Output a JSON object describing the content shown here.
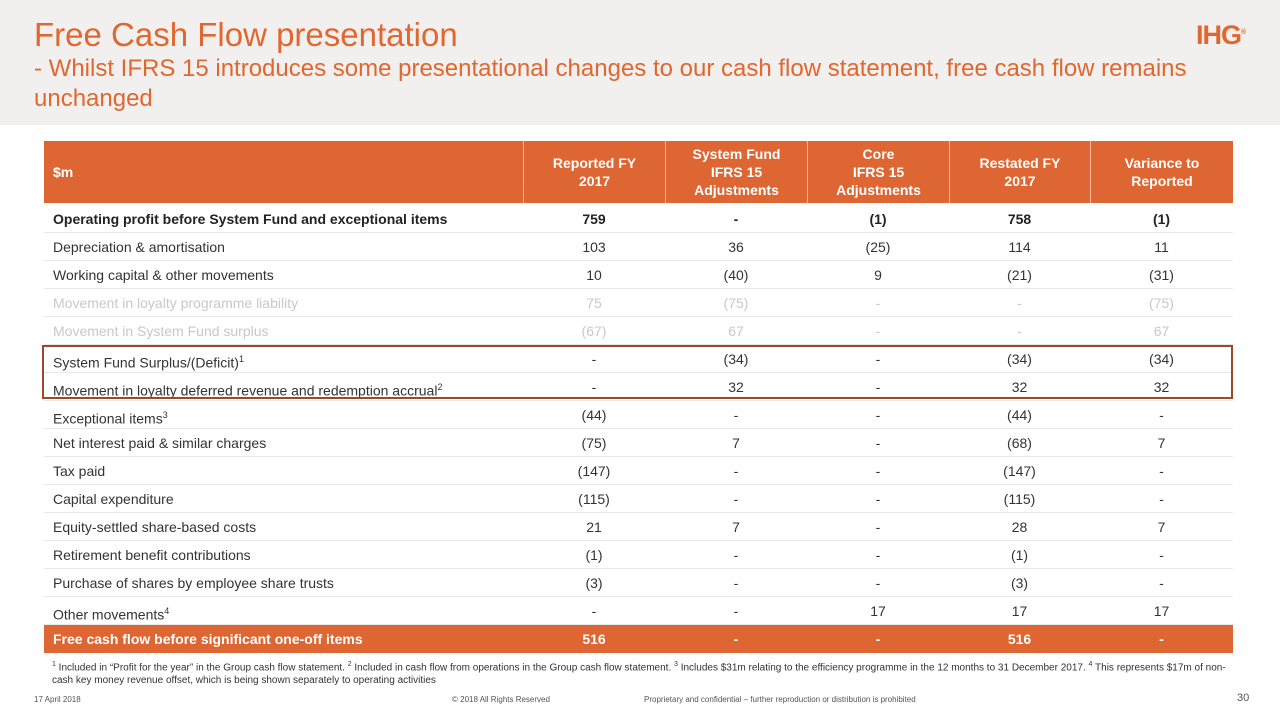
{
  "header": {
    "title": "Free Cash Flow presentation",
    "subtitle": "- Whilst IFRS 15 introduces some presentational changes to our cash flow statement, free cash flow remains unchanged",
    "logo": "IHG",
    "logo_mark": "®"
  },
  "table": {
    "columns": [
      [
        "$m"
      ],
      [
        "Reported FY",
        "2017"
      ],
      [
        "System Fund",
        "IFRS 15",
        "Adjustments"
      ],
      [
        "Core",
        "IFRS 15",
        "Adjustments"
      ],
      [
        "Restated FY",
        "2017"
      ],
      [
        "Variance to",
        "Reported"
      ]
    ],
    "rows": [
      {
        "label": "Operating profit before System Fund and exceptional items",
        "values": [
          "759",
          "-",
          "(1)",
          "758",
          "(1)"
        ]
      },
      {
        "label": "Depreciation & amortisation",
        "values": [
          "103",
          "36",
          "(25)",
          "114",
          "11"
        ]
      },
      {
        "label": "Working capital & other movements",
        "values": [
          "10",
          "(40)",
          "9",
          "(21)",
          "(31)"
        ]
      },
      {
        "label": "Movement in loyalty programme liability",
        "values": [
          "75",
          "(75)",
          "-",
          "-",
          "(75)"
        ]
      },
      {
        "label": "Movement in System Fund surplus",
        "values": [
          "(67)",
          "67",
          "-",
          "-",
          "67"
        ]
      },
      {
        "label": "System Fund Surplus/(Deficit)",
        "sup": "1",
        "values": [
          "-",
          "(34)",
          "-",
          "(34)",
          "(34)"
        ]
      },
      {
        "label": "Movement in loyalty deferred revenue and redemption accrual",
        "sup": "2",
        "values": [
          "-",
          "32",
          "-",
          "32",
          "32"
        ]
      },
      {
        "label": "Exceptional items",
        "sup": "3",
        "values": [
          "(44)",
          "-",
          "-",
          "(44)",
          "-"
        ]
      },
      {
        "label": "Net interest paid & similar charges",
        "values": [
          "(75)",
          "7",
          "-",
          "(68)",
          "7"
        ]
      },
      {
        "label": "Tax paid",
        "values": [
          "(147)",
          "-",
          "-",
          "(147)",
          "-"
        ]
      },
      {
        "label": "Capital expenditure",
        "values": [
          "(115)",
          "-",
          "-",
          "(115)",
          "-"
        ]
      },
      {
        "label": "Equity-settled share-based costs",
        "values": [
          "21",
          "7",
          "-",
          "28",
          "7"
        ]
      },
      {
        "label": "Retirement benefit contributions",
        "values": [
          "(1)",
          "-",
          "-",
          "(1)",
          "-"
        ]
      },
      {
        "label": "Purchase of shares by employee share trusts",
        "values": [
          "(3)",
          "-",
          "-",
          "(3)",
          "-"
        ]
      },
      {
        "label": "Other movements",
        "sup": "4",
        "values": [
          "-",
          "-",
          "17",
          "17",
          "17"
        ]
      },
      {
        "label": "Free cash flow before significant one-off items",
        "values": [
          "516",
          "-",
          "-",
          "516",
          "-"
        ]
      }
    ]
  },
  "footnotes": [
    {
      "sup": "1",
      "text": " Included in “Profit for the year” in the Group cash flow statement. "
    },
    {
      "sup": "2",
      "text": " Included in cash flow from operations in the Group cash flow statement. "
    },
    {
      "sup": "3",
      "text": " Includes $31m relating to the efficiency programme in the 12 months to 31 December 2017. "
    },
    {
      "sup": "4",
      "text": " This represents $17m of non-cash key money revenue offset, which is being shown separately to operating activities"
    }
  ],
  "footer": {
    "date": "17 April 2018",
    "copyright": "© 2018 All Rights Reserved",
    "notice": "Proprietary and confidential – further reproduction or distribution is prohibited",
    "page": "30"
  }
}
